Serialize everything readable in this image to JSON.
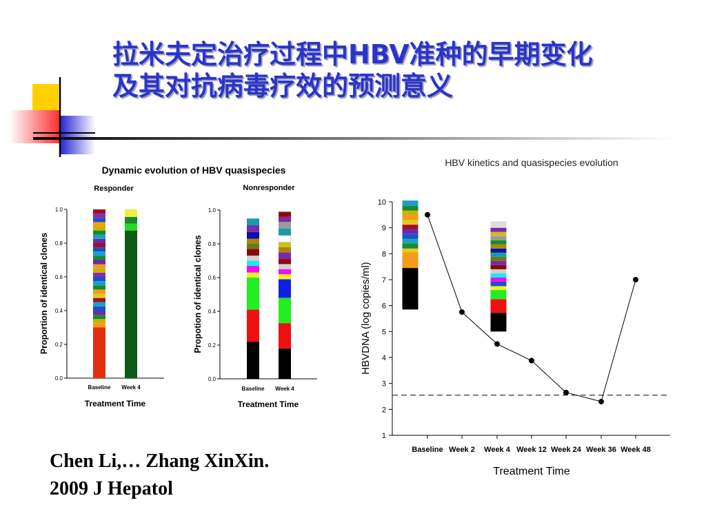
{
  "slide": {
    "title_lines": [
      "拉米夫定治疗过程中HBV准种的早期变化",
      "及其对抗病毒疗效的预测意义"
    ],
    "citation_lines": [
      "Chen Li,… Zhang XinXin.",
      "2009 J Hepatol"
    ],
    "colors": {
      "title": "#2a34c8"
    }
  },
  "chart_data": [
    {
      "type": "bar",
      "title": "Dynamic evolution of HBV quasispecies",
      "subtitle": "Responder",
      "xlabel": "Treatment Time",
      "ylabel": "Proportion of identical clones",
      "ylim": [
        0,
        1.0
      ],
      "yticks": [
        "0.0",
        "0.2",
        "0.4",
        "0.6",
        "0.8",
        "1.0"
      ],
      "categories": [
        "Baseline",
        "Week 4"
      ],
      "stacked": true,
      "stacks": [
        {
          "category": "Baseline",
          "segments": [
            {
              "value": 0.3,
              "color": "#e03010"
            },
            {
              "value": 0.025,
              "color": "#f59a1a"
            },
            {
              "value": 0.025,
              "color": "#c8b400"
            },
            {
              "value": 0.025,
              "color": "#1a8a2a"
            },
            {
              "value": 0.025,
              "color": "#6a2ab0"
            },
            {
              "value": 0.025,
              "color": "#1a50c8"
            },
            {
              "value": 0.025,
              "color": "#1aa0c8"
            },
            {
              "value": 0.025,
              "color": "#a01028"
            },
            {
              "value": 0.025,
              "color": "#e8c820"
            },
            {
              "value": 0.025,
              "color": "#f59a1a"
            },
            {
              "value": 0.025,
              "color": "#1a8a2a"
            },
            {
              "value": 0.025,
              "color": "#1aa0c8"
            },
            {
              "value": 0.025,
              "color": "#1a50c8"
            },
            {
              "value": 0.025,
              "color": "#8a2ab0"
            },
            {
              "value": 0.025,
              "color": "#c8b400"
            },
            {
              "value": 0.025,
              "color": "#f59a1a"
            },
            {
              "value": 0.025,
              "color": "#6a2ab0"
            },
            {
              "value": 0.025,
              "color": "#1a8a2a"
            },
            {
              "value": 0.025,
              "color": "#1aa0c8"
            },
            {
              "value": 0.025,
              "color": "#1a50c8"
            },
            {
              "value": 0.025,
              "color": "#a01028"
            },
            {
              "value": 0.025,
              "color": "#6a2ab0"
            },
            {
              "value": 0.025,
              "color": "#1aa0c8"
            },
            {
              "value": 0.025,
              "color": "#1a8a2a"
            },
            {
              "value": 0.025,
              "color": "#c8b400"
            },
            {
              "value": 0.025,
              "color": "#f59a1a"
            },
            {
              "value": 0.025,
              "color": "#1a50c8"
            },
            {
              "value": 0.025,
              "color": "#8a2ab0"
            },
            {
              "value": 0.025,
              "color": "#a01028"
            }
          ]
        },
        {
          "category": "Week 4",
          "segments": [
            {
              "value": 0.875,
              "color": "#0c5a1a"
            },
            {
              "value": 0.04,
              "color": "#22dd22"
            },
            {
              "value": 0.04,
              "color": "#1a8a2a"
            },
            {
              "value": 0.045,
              "color": "#e8f040"
            }
          ]
        }
      ]
    },
    {
      "type": "bar",
      "subtitle": "Nonresponder",
      "xlabel": "Treatment Time",
      "ylabel": "Propotion of identical clones",
      "ylim": [
        0,
        1.0
      ],
      "yticks": [
        "0.0",
        "0.2",
        "0.4",
        "0.6",
        "0.8",
        "1.0"
      ],
      "categories": [
        "Baseline",
        "Week 4"
      ],
      "stacked": true,
      "stacks": [
        {
          "category": "Baseline",
          "segments": [
            {
              "value": 0.22,
              "color": "#000000"
            },
            {
              "value": 0.19,
              "color": "#ee1010"
            },
            {
              "value": 0.19,
              "color": "#22ee22"
            },
            {
              "value": 0.03,
              "color": "#f0f020"
            },
            {
              "value": 0.04,
              "color": "#ee10ee"
            },
            {
              "value": 0.03,
              "color": "#20e8f0"
            },
            {
              "value": 0.03,
              "color": "#d0d0d0"
            },
            {
              "value": 0.04,
              "color": "#8a0a0a"
            },
            {
              "value": 0.03,
              "color": "#6a7a1a"
            },
            {
              "value": 0.03,
              "color": "#aa8800"
            },
            {
              "value": 0.04,
              "color": "#1010aa"
            },
            {
              "value": 0.04,
              "color": "#7a2aaa"
            },
            {
              "value": 0.04,
              "color": "#1a9aaa"
            }
          ]
        },
        {
          "category": "Week 4",
          "segments": [
            {
              "value": 0.18,
              "color": "#000000"
            },
            {
              "value": 0.15,
              "color": "#ee1010"
            },
            {
              "value": 0.15,
              "color": "#22ee22"
            },
            {
              "value": 0.11,
              "color": "#1020e0"
            },
            {
              "value": 0.03,
              "color": "#f0f020"
            },
            {
              "value": 0.03,
              "color": "#ee10ee"
            },
            {
              "value": 0.03,
              "color": "#d0d0d0"
            },
            {
              "value": 0.03,
              "color": "#8a0a0a"
            },
            {
              "value": 0.04,
              "color": "#7a2aaa"
            },
            {
              "value": 0.03,
              "color": "#aa8800"
            },
            {
              "value": 0.03,
              "color": "#c8c020"
            },
            {
              "value": 0.04,
              "color": "#ffffff"
            },
            {
              "value": 0.04,
              "color": "#1a9aaa"
            },
            {
              "value": 0.04,
              "color": "#9a9a9a"
            },
            {
              "value": 0.03,
              "color": "#7a2aaa"
            },
            {
              "value": 0.03,
              "color": "#8a0a0a"
            }
          ]
        }
      ]
    },
    {
      "type": "line",
      "title": "HBV kinetics and quasispecies evolution",
      "xlabel": "Treatment Time",
      "ylabel": "HBVDNA (log copies/ml)",
      "ylim": [
        1,
        10
      ],
      "yticks": [
        "1",
        "2",
        "3",
        "4",
        "5",
        "6",
        "7",
        "8",
        "9",
        "10"
      ],
      "categories": [
        "Baseline",
        "Week 2",
        "Week 4",
        "Week 12",
        "Week 24",
        "Week 36",
        "Week 48"
      ],
      "series": [
        {
          "values": [
            9.5,
            5.75,
            4.52,
            3.88,
            2.65,
            2.3,
            7.0
          ]
        }
      ],
      "reference_line": {
        "y": 2.55,
        "style": "dashed"
      },
      "inset_stacks": [
        {
          "category": "Baseline",
          "segments": [
            {
              "from": 5.85,
              "to": 7.45,
              "color": "#000000"
            },
            {
              "from": 7.45,
              "to": 8.05,
              "color": "#f59a1a"
            },
            {
              "from": 8.05,
              "to": 8.2,
              "color": "#e8c820"
            },
            {
              "from": 8.2,
              "to": 8.4,
              "color": "#1a8a2a"
            },
            {
              "from": 8.4,
              "to": 8.58,
              "color": "#1aa0c8"
            },
            {
              "from": 8.58,
              "to": 8.76,
              "color": "#1a50c8"
            },
            {
              "from": 8.76,
              "to": 8.94,
              "color": "#6a2ab0"
            },
            {
              "from": 8.94,
              "to": 9.12,
              "color": "#a01028"
            },
            {
              "from": 9.12,
              "to": 9.3,
              "color": "#e8c820"
            },
            {
              "from": 9.3,
              "to": 9.48,
              "color": "#f59a1a"
            },
            {
              "from": 9.48,
              "to": 9.66,
              "color": "#c8b400"
            },
            {
              "from": 9.66,
              "to": 9.84,
              "color": "#1a8a2a"
            },
            {
              "from": 9.84,
              "to": 10.05,
              "color": "#1aa0c8"
            }
          ]
        },
        {
          "category": "Week 4",
          "segments": [
            {
              "from": 5.0,
              "to": 5.72,
              "color": "#000000"
            },
            {
              "from": 5.72,
              "to": 6.25,
              "color": "#ee1010"
            },
            {
              "from": 6.25,
              "to": 6.6,
              "color": "#22ee22"
            },
            {
              "from": 6.6,
              "to": 6.75,
              "color": "#f0f020"
            },
            {
              "from": 6.75,
              "to": 6.92,
              "color": "#1a50c8"
            },
            {
              "from": 6.92,
              "to": 7.08,
              "color": "#ee10ee"
            },
            {
              "from": 7.08,
              "to": 7.24,
              "color": "#20e8f0"
            },
            {
              "from": 7.24,
              "to": 7.4,
              "color": "#d0d0d0"
            },
            {
              "from": 7.4,
              "to": 7.56,
              "color": "#8a0a0a"
            },
            {
              "from": 7.56,
              "to": 7.72,
              "color": "#7a2aaa"
            },
            {
              "from": 7.72,
              "to": 7.88,
              "color": "#6a7a1a"
            },
            {
              "from": 7.88,
              "to": 8.04,
              "color": "#1a9aaa"
            },
            {
              "from": 8.04,
              "to": 8.2,
              "color": "#1010aa"
            },
            {
              "from": 8.2,
              "to": 8.36,
              "color": "#aa8800"
            },
            {
              "from": 8.36,
              "to": 8.52,
              "color": "#1a8a2a"
            },
            {
              "from": 8.52,
              "to": 8.68,
              "color": "#9a9a9a"
            },
            {
              "from": 8.68,
              "to": 8.84,
              "color": "#c8c020"
            },
            {
              "from": 8.84,
              "to": 9.0,
              "color": "#7a2aaa"
            },
            {
              "from": 9.0,
              "to": 9.25,
              "color": "#dddddd"
            }
          ]
        }
      ]
    }
  ]
}
